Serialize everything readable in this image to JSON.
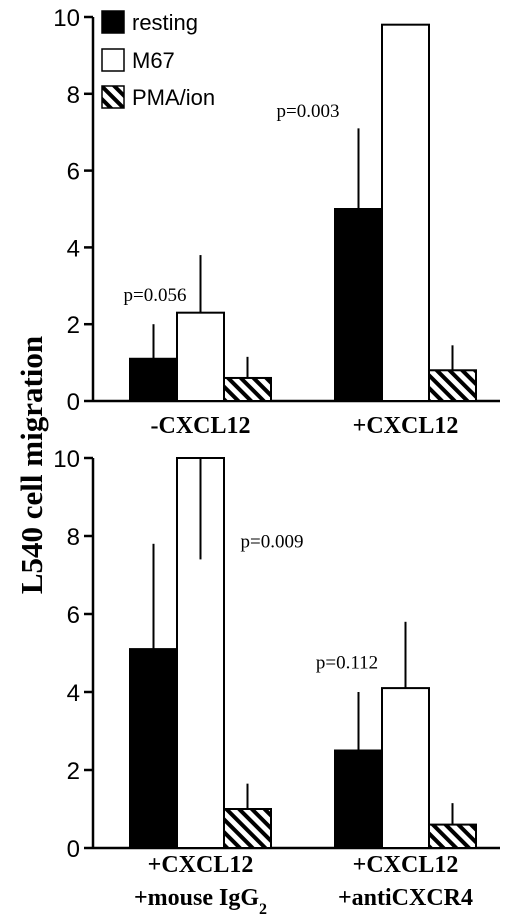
{
  "ylabel": "L540 cell migration",
  "legend": [
    {
      "label": "resting",
      "style": "solid"
    },
    {
      "label": "M67",
      "style": "open"
    },
    {
      "label": "PMA/ion",
      "style": "hatched"
    }
  ],
  "colors": {
    "resting": "#000000",
    "M67": "#ffffff",
    "PMA/ion": "hatch-black-white"
  },
  "chart_data": [
    {
      "type": "bar",
      "title": "",
      "xlabel": "",
      "ylabel": "L540 cell migration",
      "ylim": [
        0,
        10
      ],
      "yticks": [
        "0",
        "2",
        "4",
        "6",
        "8",
        "10"
      ],
      "grid": false,
      "legend_position": "top-left",
      "categories": [
        {
          "lines": [
            "-CXCL12"
          ]
        },
        {
          "lines": [
            "+CXCL12"
          ]
        }
      ],
      "series": [
        {
          "name": "resting",
          "values": [
            1.1,
            5.0
          ],
          "errors": [
            0.9,
            2.1
          ]
        },
        {
          "name": "M67",
          "values": [
            2.3,
            9.8
          ],
          "errors": [
            1.5,
            0.0
          ]
        },
        {
          "name": "PMA/ion",
          "values": [
            0.6,
            0.8
          ],
          "errors": [
            0.55,
            0.65
          ]
        }
      ],
      "errors_upper": [
        [
          0.9,
          2.1
        ],
        [
          1.5,
          0.0
        ],
        [
          0.55,
          0.65
        ]
      ],
      "annotations": [
        {
          "text": "p=0.056",
          "category_index": 0,
          "anchor_y": 2.6
        },
        {
          "text": "p=0.003",
          "category_index": 1,
          "anchor_y": 7.4
        }
      ]
    },
    {
      "type": "bar",
      "title": "",
      "xlabel": "",
      "ylabel": "L540 cell migration",
      "ylim": [
        0,
        10
      ],
      "yticks": [
        "0",
        "2",
        "4",
        "6",
        "8",
        "10"
      ],
      "grid": false,
      "categories": [
        {
          "lines": [
            "+CXCL12",
            "+mouse IgG"
          ],
          "subscript": "2"
        },
        {
          "lines": [
            "+CXCL12",
            "+antiCXCR4"
          ]
        }
      ],
      "series": [
        {
          "name": "resting",
          "values": [
            5.1,
            2.5
          ],
          "errors": [
            2.7,
            1.5
          ]
        },
        {
          "name": "M67",
          "values": [
            10.0,
            4.1
          ],
          "errors": [
            0.0,
            1.7
          ]
        },
        {
          "name": "PMA/ion",
          "values": [
            1.0,
            0.6
          ],
          "errors": [
            0.65,
            0.55
          ]
        }
      ],
      "errors_lower": [
        [
          0.0,
          0.0
        ],
        [
          2.6,
          0.0
        ],
        [
          0.0,
          0.0
        ]
      ],
      "annotations": [
        {
          "text": "p=0.009",
          "category_index": 0,
          "anchor_y": 7.7
        },
        {
          "text": "p=0.112",
          "category_index": 1,
          "anchor_y": 4.6
        }
      ]
    }
  ]
}
